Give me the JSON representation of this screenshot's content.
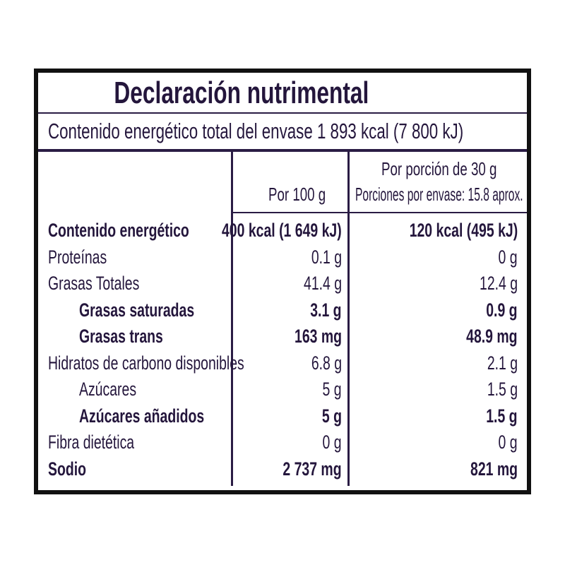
{
  "title": "Declaración nutrimental",
  "total_energy": "Contenido energético total del envase 1 893 kcal (7 800 kJ)",
  "columns": {
    "per100": "Por 100 g",
    "portion_line1": "Por porción de 30 g",
    "portion_line2": "Porciones por envase: 15.8 aprox."
  },
  "rows": [
    {
      "label": "Contenido energético",
      "per100": "400 kcal (1 649 kJ)",
      "portion": "120 kcal (495 kJ)",
      "bold": true,
      "indent": 0
    },
    {
      "label": "Proteínas",
      "per100": "0.1 g",
      "portion": "0 g",
      "bold": false,
      "indent": 0
    },
    {
      "label": "Grasas Totales",
      "per100": "41.4 g",
      "portion": "12.4 g",
      "bold": false,
      "indent": 0
    },
    {
      "label": "Grasas saturadas",
      "per100": "3.1 g",
      "portion": "0.9 g",
      "bold": true,
      "indent": 1
    },
    {
      "label": "Grasas trans",
      "per100": "163 mg",
      "portion": "48.9 mg",
      "bold": true,
      "indent": 1
    },
    {
      "label": "Hidratos de carbono disponibles",
      "per100": "6.8 g",
      "portion": "2.1 g",
      "bold": false,
      "indent": 0
    },
    {
      "label": "Azúcares",
      "per100": "5 g",
      "portion": "1.5 g",
      "bold": false,
      "indent": 2
    },
    {
      "label": "Azúcares añadidos",
      "per100": "5 g",
      "portion": "1.5 g",
      "bold": true,
      "indent": 2
    },
    {
      "label": "Fibra dietética",
      "per100": "0 g",
      "portion": "0 g",
      "bold": false,
      "indent": 0
    },
    {
      "label": "Sodio",
      "per100": "2 737 mg",
      "portion": "821 mg",
      "bold": true,
      "indent": 0
    }
  ]
}
